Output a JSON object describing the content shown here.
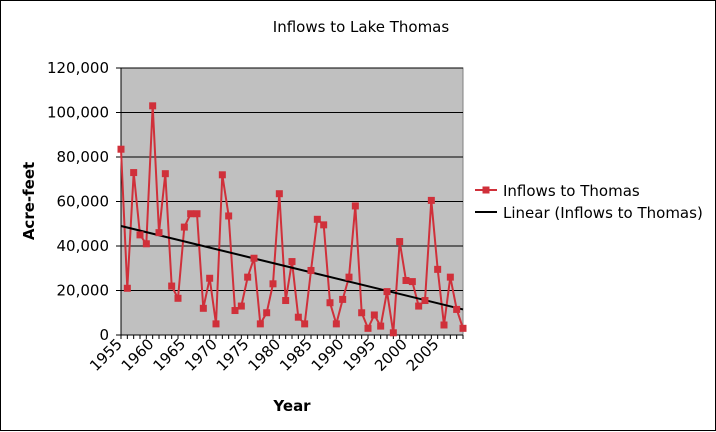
{
  "chart_data": {
    "type": "line",
    "title": "Inflows to Lake Thomas",
    "xlabel": "Year",
    "ylabel": "Acre-feet",
    "xlim": [
      1955,
      2009
    ],
    "ylim": [
      0,
      120000
    ],
    "y_ticks": [
      "0",
      "20,000",
      "40,000",
      "60,000",
      "80,000",
      "100,000",
      "120,000"
    ],
    "x_ticks": [
      "1955",
      "1960",
      "1965",
      "1970",
      "1975",
      "1980",
      "1985",
      "1990",
      "1995",
      "2000",
      "2005"
    ],
    "grid": "horizontal",
    "plot_background": "#c0c0c0",
    "legend_position": "right",
    "series": [
      {
        "name": "Inflows to Thomas",
        "color": "#d0303a",
        "marker": "square",
        "x": [
          1955,
          1956,
          1957,
          1958,
          1959,
          1960,
          1961,
          1962,
          1963,
          1964,
          1965,
          1966,
          1967,
          1968,
          1969,
          1970,
          1971,
          1972,
          1973,
          1974,
          1975,
          1976,
          1977,
          1978,
          1979,
          1980,
          1981,
          1982,
          1983,
          1984,
          1985,
          1986,
          1987,
          1988,
          1989,
          1990,
          1991,
          1992,
          1993,
          1994,
          1995,
          1996,
          1997,
          1998,
          1999,
          2000,
          2001,
          2002,
          2003,
          2004,
          2005,
          2006,
          2007,
          2008,
          2009
        ],
        "values": [
          83500,
          21000,
          73000,
          45000,
          41000,
          103000,
          46000,
          72500,
          22000,
          16500,
          48500,
          54500,
          54500,
          12000,
          25500,
          5000,
          72000,
          53500,
          11000,
          13000,
          26000,
          34500,
          5000,
          10000,
          23000,
          63500,
          15500,
          33000,
          8000,
          5000,
          29000,
          52000,
          49500,
          14500,
          5000,
          16000,
          26000,
          58000,
          10000,
          3000,
          9000,
          4000,
          19500,
          1000,
          42000,
          24500,
          24000,
          13000,
          15500,
          60500,
          29500,
          4500,
          26000,
          11500,
          3000
        ]
      },
      {
        "name": "Linear (Inflows to Thomas)",
        "color": "#000000",
        "type": "trendline",
        "x": [
          1955,
          2009
        ],
        "values": [
          49000,
          11500
        ]
      }
    ]
  }
}
